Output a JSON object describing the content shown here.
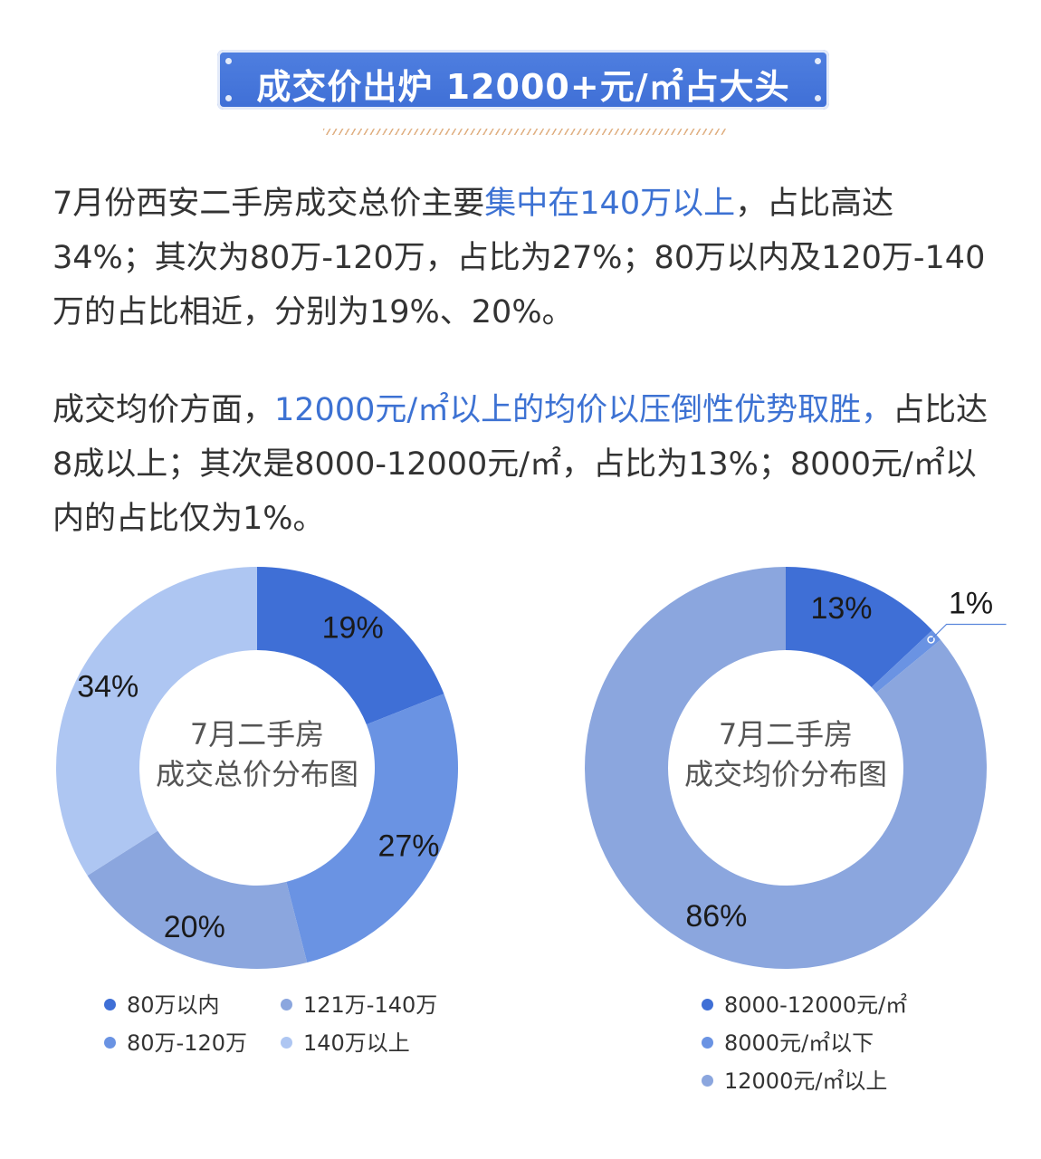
{
  "title": "成交价出炉 12000+元/㎡占大头",
  "paragraph1": {
    "part1": "7月份西安二手房成交总价主要",
    "highlight": "集中在140万以上",
    "part2": "，占比高达34%；其次为80万-120万，占比为27%；80万以内及120万-140万的占比相近，分别为19%、20%。"
  },
  "paragraph2": {
    "part1": "成交均价方面，",
    "highlight": "12000元/㎡以上的均价以压倒性优势取胜，",
    "part2": "占比达8成以上；其次是8000-12000元/㎡，占比为13%；8000元/㎡以内的占比仅为1%。"
  },
  "colors": {
    "dark_blue": "#3f6fd6",
    "mid_blue": "#6a93e3",
    "muted_blue": "#8ba6de",
    "light_blue": "#aec6f2",
    "highlight_text": "#3d72d3"
  },
  "chart_data": [
    {
      "type": "pie",
      "donut": true,
      "center_label": [
        "7月二手房",
        "成交总价分布图"
      ],
      "series": [
        {
          "name": "80万以内",
          "value": 19,
          "label": "19%",
          "color": "#3f6fd6"
        },
        {
          "name": "80万-120万",
          "value": 27,
          "label": "27%",
          "color": "#6a93e3"
        },
        {
          "name": "121万-140万",
          "value": 20,
          "label": "20%",
          "color": "#8ba6de"
        },
        {
          "name": "140万以上",
          "value": 34,
          "label": "34%",
          "color": "#aec6f2"
        }
      ],
      "legend": [
        "80万以内",
        "121万-140万",
        "80万-120万",
        "140万以上"
      ],
      "legend_placement": "bottom"
    },
    {
      "type": "pie",
      "donut": true,
      "center_label": [
        "7月二手房",
        "成交均价分布图"
      ],
      "series": [
        {
          "name": "8000-12000元/㎡",
          "value": 13,
          "label": "13%",
          "color": "#3f6fd6"
        },
        {
          "name": "8000元/㎡以下",
          "value": 1,
          "label": "1%",
          "color": "#6a93e3"
        },
        {
          "name": "12000元/㎡以上",
          "value": 86,
          "label": "86%",
          "color": "#8ba6de"
        }
      ],
      "legend": [
        "8000-12000元/㎡",
        "8000元/㎡以下",
        "12000元/㎡以上"
      ],
      "legend_placement": "bottom"
    }
  ]
}
